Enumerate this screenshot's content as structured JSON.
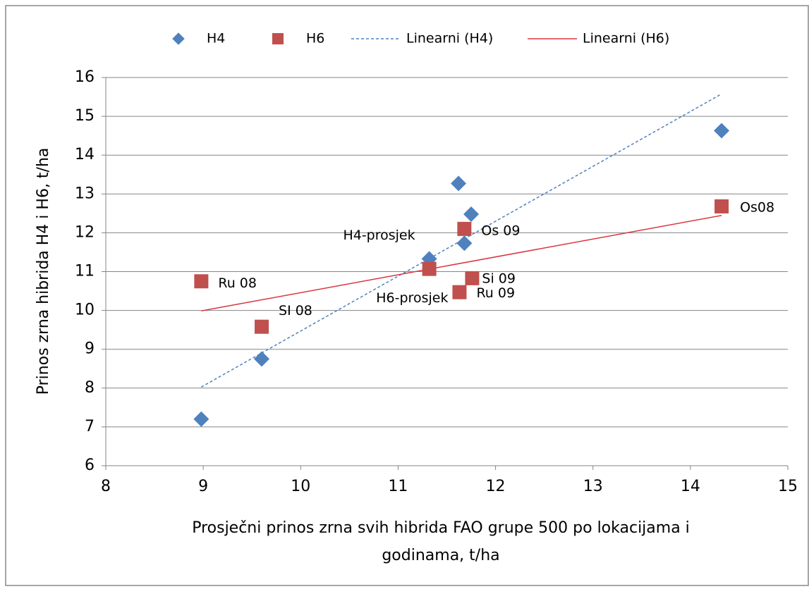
{
  "chart_data": {
    "type": "scatter",
    "y_label": "Prinos zrna hibrida H4 i H6, t/ha",
    "x_label": [
      "Prosječni prinos zrna svih hibrida FAO grupe 500 po lokacijama i",
      "godinama, t/ha"
    ],
    "xlim": [
      8,
      15
    ],
    "xticks": [
      8,
      9,
      10,
      11,
      12,
      13,
      14,
      15
    ],
    "ylim": [
      6,
      16
    ],
    "yticks": [
      6,
      7,
      8,
      9,
      10,
      11,
      12,
      13,
      14,
      15,
      16
    ],
    "grid": true,
    "legend": "top",
    "series": [
      {
        "name": "H4",
        "color": "#4f81bd",
        "marker": "diamond",
        "x": [
          8.98,
          9.6,
          11.32,
          11.62,
          11.68,
          11.75,
          14.32
        ],
        "values": [
          7.2,
          8.75,
          11.33,
          13.27,
          11.73,
          12.48,
          14.63
        ],
        "labels": [
          null,
          null,
          "H4-prosjek",
          null,
          null,
          null,
          null
        ]
      },
      {
        "name": "H6",
        "color": "#c0504d",
        "marker": "square",
        "x": [
          8.98,
          9.6,
          11.32,
          11.63,
          11.68,
          11.76,
          14.32
        ],
        "values": [
          10.75,
          9.58,
          11.07,
          10.47,
          12.1,
          10.83,
          12.68
        ],
        "labels": [
          "Ru 08",
          "SI 08",
          "H6-prosjek",
          "Ru 09",
          "Os 09",
          "Si 09",
          "Os08"
        ]
      }
    ],
    "trendlines": [
      {
        "name": "Linearni (H4)",
        "series": 0,
        "color": "#4f81bd",
        "dashed": true
      },
      {
        "name": "Linearni (H6)",
        "series": 1,
        "color": "#d9363e",
        "dashed": false
      }
    ]
  }
}
